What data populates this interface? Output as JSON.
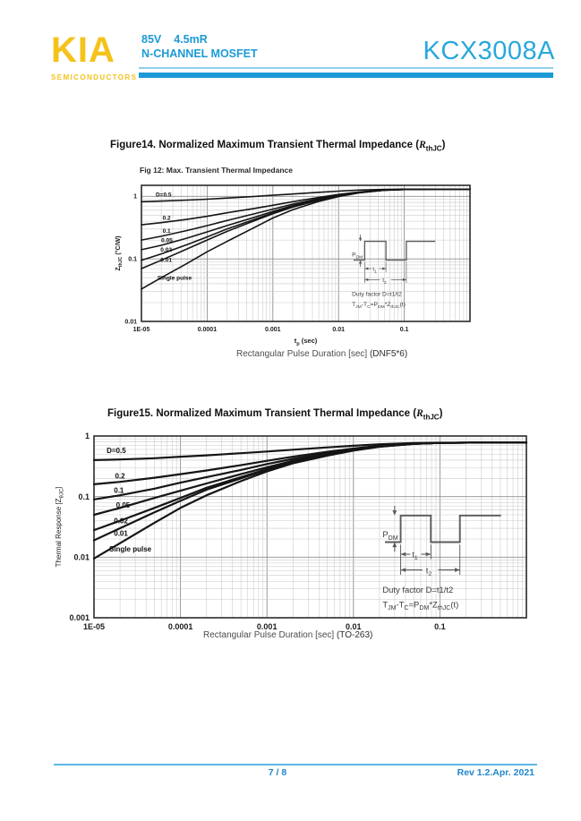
{
  "header": {
    "logo": "KIA",
    "logo_sub": "SEMICONDUCTORS",
    "voltage": "85V",
    "rdson": "4.5mR",
    "family": "N-CHANNEL MOSFET",
    "part_number": "KCX3008A",
    "accent_color": "#1b9ad6",
    "logo_color": "#f4c21b"
  },
  "figures": {
    "fig14": {
      "heading_pre": "Figure14. Normalized Maximum Transient Thermal Impedance (",
      "heading_sym": "R",
      "heading_sub": "thJC",
      "heading_post": ")",
      "caption": "Rectangular Pulse Duration [sec]",
      "caption_pkg": "(DNF5*6)"
    },
    "fig15": {
      "heading_pre": "Figure15. Normalized Maximum Transient Thermal Impedance (",
      "heading_sym": "R",
      "heading_sub": "thJC",
      "heading_post": ")",
      "caption": "Rectangular Pulse Duration [sec]",
      "caption_pkg": "(TO-263)"
    }
  },
  "footer": {
    "page": "7 / 8",
    "rev": "Rev 1.2.Apr. 2021"
  },
  "chart_data": [
    {
      "type": "line",
      "title": "Fig 12: Max. Transient Thermal Impedance",
      "xlabel_segments": [
        {
          "t": "t"
        },
        {
          "t": "p",
          "sub": true
        },
        {
          "t": " (sec)"
        }
      ],
      "ylabel_segments": [
        {
          "t": "Z"
        },
        {
          "t": "thJC",
          "sub": true
        },
        {
          "t": " (°C/W)"
        }
      ],
      "xscale": "log",
      "yscale": "log",
      "grid": true,
      "legend_position": "on-curve",
      "xlim": [
        1e-05,
        1
      ],
      "ylim": [
        0.01,
        1.5
      ],
      "xticks": [
        [
          "1E-05",
          1e-05
        ],
        [
          "0.0001",
          0.0001
        ],
        [
          "0.001",
          0.001
        ],
        [
          "0.01",
          0.01
        ],
        [
          "0.1",
          0.1
        ]
      ],
      "yticks": [
        [
          "1",
          1
        ],
        [
          "0.1",
          0.1
        ],
        [
          "0.01",
          0.01
        ]
      ],
      "x": [
        1e-05,
        2e-05,
        5e-05,
        0.0001,
        0.0002,
        0.0005,
        0.001,
        0.002,
        0.005,
        0.01,
        0.02,
        0.05,
        0.1,
        0.3,
        1
      ],
      "series": [
        {
          "name": "D=0.5",
          "label_x": 1.65e-05,
          "label_y": 1.0,
          "values": [
            0.82,
            0.84,
            0.87,
            0.9,
            0.94,
            0.99,
            1.04,
            1.09,
            1.16,
            1.21,
            1.26,
            1.29,
            1.3,
            1.3,
            1.3
          ]
        },
        {
          "name": "0.2",
          "label_x": 2.1e-05,
          "label_y": 0.42,
          "values": [
            0.35,
            0.38,
            0.43,
            0.48,
            0.545,
            0.635,
            0.72,
            0.82,
            0.96,
            1.07,
            1.17,
            1.27,
            1.29,
            1.3,
            1.3
          ]
        },
        {
          "name": "0.1",
          "label_x": 2.1e-05,
          "label_y": 0.26,
          "values": [
            0.2,
            0.23,
            0.285,
            0.34,
            0.41,
            0.52,
            0.625,
            0.75,
            0.92,
            1.05,
            1.16,
            1.26,
            1.29,
            1.3,
            1.3
          ]
        },
        {
          "name": "0.05",
          "label_x": 2e-05,
          "label_y": 0.185,
          "values": [
            0.14,
            0.165,
            0.215,
            0.27,
            0.34,
            0.455,
            0.575,
            0.71,
            0.89,
            1.03,
            1.155,
            1.26,
            1.29,
            1.3,
            1.3
          ]
        },
        {
          "name": "0.02",
          "label_x": 1.95e-05,
          "label_y": 0.13,
          "values": [
            0.095,
            0.12,
            0.17,
            0.225,
            0.3,
            0.42,
            0.545,
            0.685,
            0.875,
            1.02,
            1.15,
            1.255,
            1.285,
            1.3,
            1.3
          ]
        },
        {
          "name": "0.01",
          "label_x": 1.95e-05,
          "label_y": 0.09,
          "values": [
            0.07,
            0.095,
            0.145,
            0.2,
            0.275,
            0.4,
            0.525,
            0.67,
            0.865,
            1.015,
            1.145,
            1.255,
            1.285,
            1.3,
            1.3
          ]
        },
        {
          "name": "Single pulse",
          "label_x": 1.75e-05,
          "label_y": 0.046,
          "values": [
            0.033,
            0.05,
            0.085,
            0.13,
            0.19,
            0.31,
            0.45,
            0.61,
            0.83,
            0.99,
            1.13,
            1.25,
            1.285,
            1.3,
            1.3
          ]
        }
      ],
      "inset": {
        "p": [
          {
            "t": "P"
          },
          {
            "t": "DM",
            "sub": true
          }
        ],
        "t1": [
          {
            "t": "t"
          },
          {
            "t": "1",
            "sub": true
          }
        ],
        "t2": [
          {
            "t": "t"
          },
          {
            "t": "2",
            "sub": true
          }
        ],
        "line1": "Duty factor D=t1/t2",
        "line2": [
          {
            "t": "T"
          },
          {
            "t": "JM",
            "sub": true
          },
          {
            "t": "-T"
          },
          {
            "t": "C",
            "sub": true
          },
          {
            "t": "=P"
          },
          {
            "t": "DM",
            "sub": true
          },
          {
            "t": "*Z"
          },
          {
            "t": "thJC",
            "sub": true
          },
          {
            "t": "(t)"
          }
        ]
      }
    },
    {
      "type": "line",
      "title": "",
      "ylabel_segments": [
        {
          "t": "Thermal Response  [Z"
        },
        {
          "t": "θJC",
          "sub": true
        },
        {
          "t": "]"
        }
      ],
      "xscale": "log",
      "yscale": "log",
      "grid": true,
      "legend_position": "on-curve",
      "xlim": [
        1e-05,
        1
      ],
      "ylim": [
        0.001,
        1
      ],
      "xticks": [
        [
          "1E-05",
          1e-05
        ],
        [
          "0.0001",
          0.0001
        ],
        [
          "0.001",
          0.001
        ],
        [
          "0.01",
          0.01
        ],
        [
          "0.1",
          0.1
        ]
      ],
      "yticks": [
        [
          "1",
          1
        ],
        [
          "0.1",
          0.1
        ],
        [
          "0.01",
          0.01
        ],
        [
          "0.001",
          0.001
        ]
      ],
      "x": [
        1e-05,
        2e-05,
        5e-05,
        0.0001,
        0.0002,
        0.0005,
        0.001,
        0.002,
        0.005,
        0.01,
        0.02,
        0.05,
        0.1,
        0.3,
        1
      ],
      "series": [
        {
          "name": "D=0.5",
          "label_x": 1.4e-05,
          "label_y": 0.52,
          "values": [
            0.4,
            0.41,
            0.43,
            0.455,
            0.48,
            0.52,
            0.555,
            0.595,
            0.65,
            0.69,
            0.73,
            0.765,
            0.775,
            0.78,
            0.78
          ]
        },
        {
          "name": "0.2",
          "label_x": 1.75e-05,
          "label_y": 0.2,
          "values": [
            0.16,
            0.175,
            0.205,
            0.235,
            0.27,
            0.33,
            0.39,
            0.455,
            0.55,
            0.62,
            0.69,
            0.75,
            0.77,
            0.78,
            0.78
          ]
        },
        {
          "name": "0.1",
          "label_x": 1.7e-05,
          "label_y": 0.115,
          "values": [
            0.09,
            0.105,
            0.135,
            0.17,
            0.21,
            0.275,
            0.345,
            0.42,
            0.52,
            0.6,
            0.68,
            0.745,
            0.77,
            0.78,
            0.78
          ]
        },
        {
          "name": "0.05",
          "label_x": 1.8e-05,
          "label_y": 0.066,
          "values": [
            0.05,
            0.065,
            0.095,
            0.125,
            0.165,
            0.235,
            0.305,
            0.39,
            0.5,
            0.59,
            0.675,
            0.745,
            0.77,
            0.78,
            0.78
          ]
        },
        {
          "name": "0.02",
          "label_x": 1.7e-05,
          "label_y": 0.036,
          "values": [
            0.028,
            0.04,
            0.065,
            0.095,
            0.14,
            0.21,
            0.285,
            0.375,
            0.49,
            0.585,
            0.67,
            0.74,
            0.77,
            0.78,
            0.78
          ]
        },
        {
          "name": "0.01",
          "label_x": 1.7e-05,
          "label_y": 0.0225,
          "values": [
            0.019,
            0.03,
            0.055,
            0.085,
            0.13,
            0.2,
            0.275,
            0.37,
            0.485,
            0.58,
            0.67,
            0.74,
            0.77,
            0.78,
            0.78
          ]
        },
        {
          "name": "Single pulse",
          "label_x": 1.5e-05,
          "label_y": 0.0125,
          "values": [
            0.0095,
            0.017,
            0.037,
            0.065,
            0.105,
            0.18,
            0.26,
            0.355,
            0.475,
            0.575,
            0.665,
            0.74,
            0.77,
            0.78,
            0.78
          ]
        }
      ],
      "inset": {
        "p": [
          {
            "t": "P"
          },
          {
            "t": "DM",
            "sub": true
          }
        ],
        "t1": [
          {
            "t": "t"
          },
          {
            "t": "1",
            "sub": true
          }
        ],
        "t2": [
          {
            "t": "t"
          },
          {
            "t": "2",
            "sub": true
          }
        ],
        "line1": "Duty factor D=t1/t2",
        "line2": [
          {
            "t": "T"
          },
          {
            "t": "JM",
            "sub": true
          },
          {
            "t": "-T"
          },
          {
            "t": "C",
            "sub": true
          },
          {
            "t": "=P"
          },
          {
            "t": "DM",
            "sub": true
          },
          {
            "t": "*Z"
          },
          {
            "t": "thJC",
            "sub": true
          },
          {
            "t": "(t)"
          }
        ]
      }
    }
  ]
}
